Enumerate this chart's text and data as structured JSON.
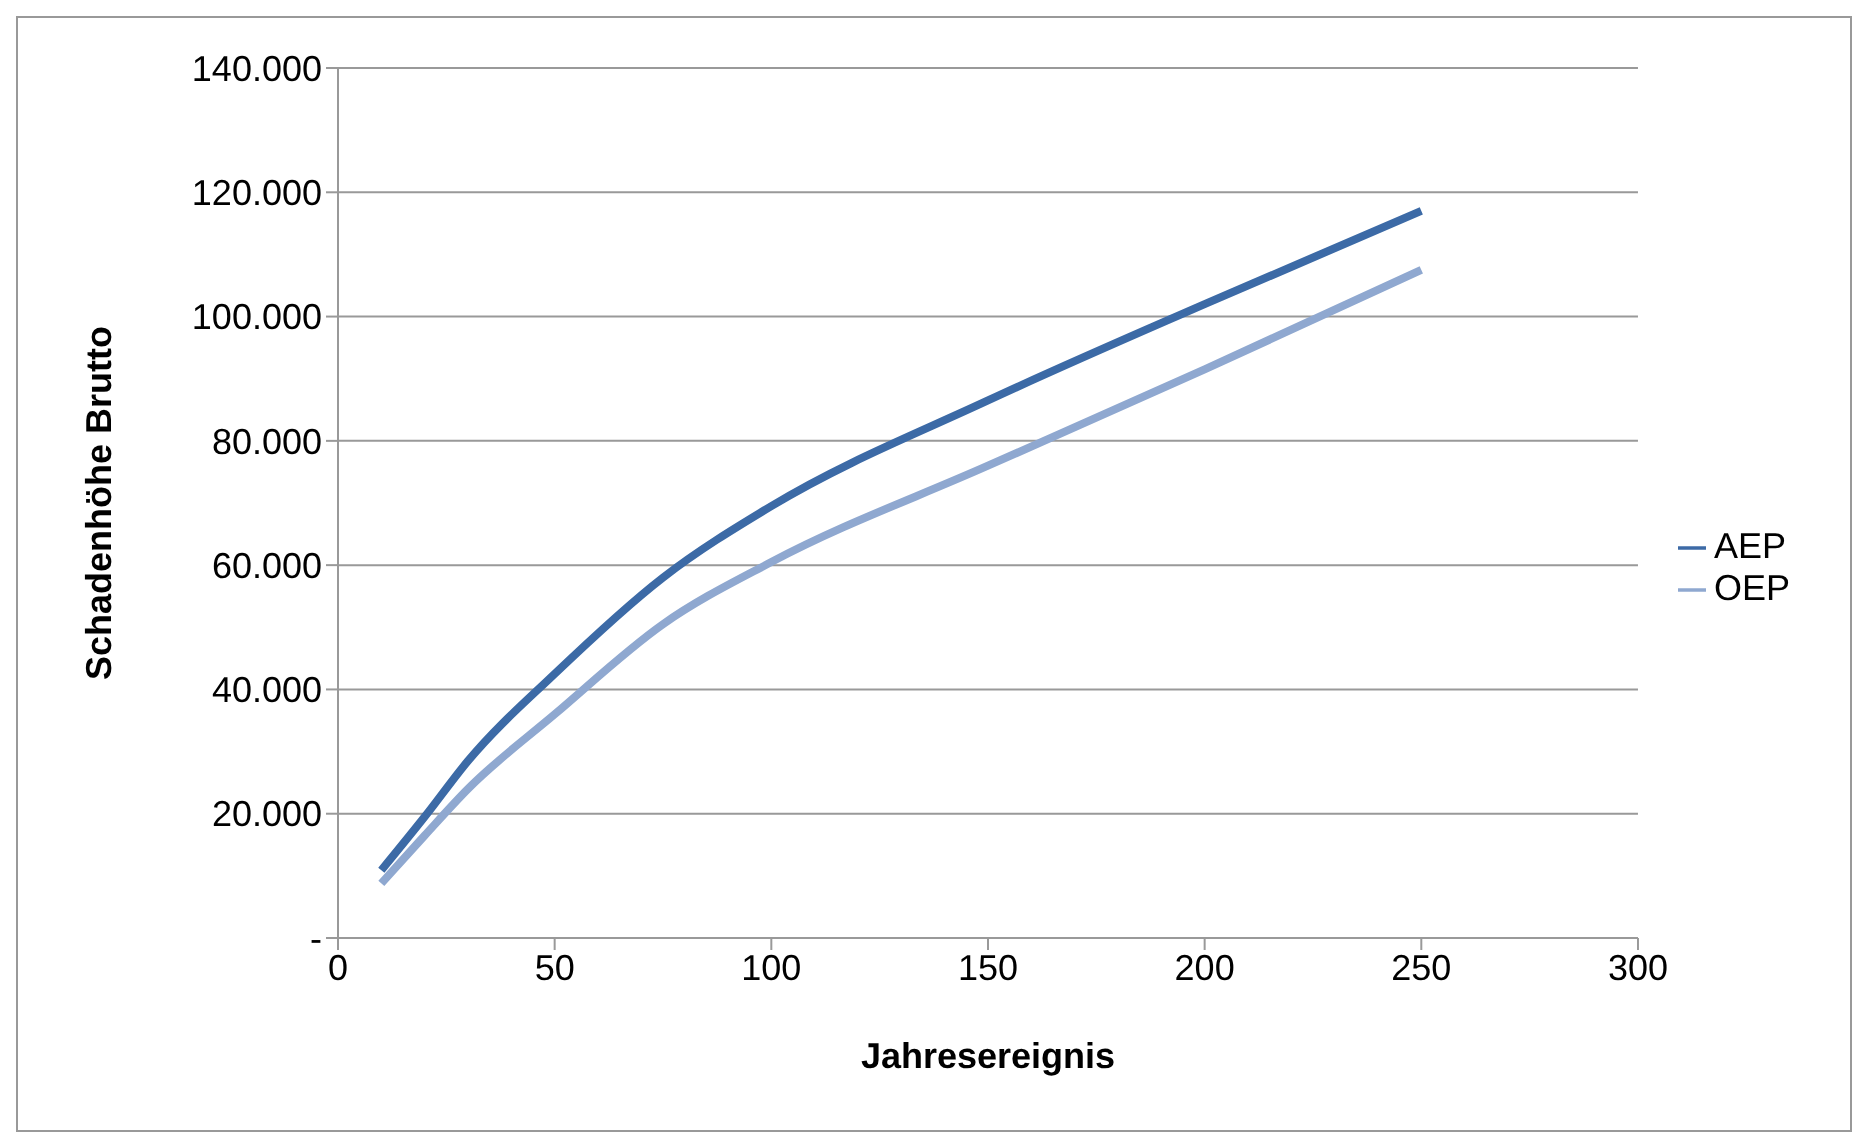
{
  "chart_data": {
    "type": "line",
    "xlabel": "Jahresereignis",
    "ylabel": "Schadenhöhe Brutto",
    "x": [
      10,
      20,
      30,
      50,
      75,
      100,
      150,
      200,
      250
    ],
    "series": [
      {
        "name": "AEP",
        "color": "#3c6aa6",
        "values": [
          10900,
          19500,
          28500,
          42500,
          58000,
          69500,
          86500,
          102000,
          117000
        ]
      },
      {
        "name": "OEP",
        "color": "#8fa8d0",
        "values": [
          8800,
          16500,
          24000,
          36000,
          50500,
          60500,
          76000,
          91500,
          107500
        ]
      }
    ],
    "xlim": [
      0,
      300
    ],
    "xticks": [
      0,
      50,
      100,
      150,
      200,
      250,
      300
    ],
    "ylim": [
      0,
      140000
    ],
    "yticks": [
      {
        "value": 0,
        "label": "-"
      },
      {
        "value": 20000,
        "label": "20.000"
      },
      {
        "value": 40000,
        "label": "40.000"
      },
      {
        "value": 60000,
        "label": "60.000"
      },
      {
        "value": 80000,
        "label": "80.000"
      },
      {
        "value": 100000,
        "label": "100.000"
      },
      {
        "value": 120000,
        "label": "120.000"
      },
      {
        "value": 140000,
        "label": "140.000"
      }
    ],
    "grid": "y",
    "legend": "right",
    "marker": "none",
    "line_style": "solid"
  }
}
